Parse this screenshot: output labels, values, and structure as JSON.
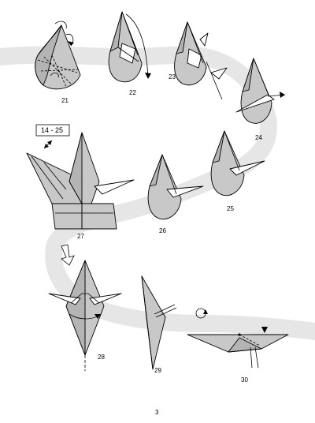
{
  "steps": [
    {
      "number": "21"
    },
    {
      "number": "22"
    },
    {
      "number": "23"
    },
    {
      "number": "24"
    },
    {
      "number": "25"
    },
    {
      "number": "26"
    },
    {
      "number": "27"
    },
    {
      "number": "28"
    },
    {
      "number": "29"
    },
    {
      "number": "30"
    }
  ],
  "repeat_box": {
    "label": "14 - 25"
  },
  "page_number": "3",
  "colors": {
    "paper": "#c8c8c8",
    "paper_dark": "#b4b4b4",
    "path": "#e6e6e6",
    "line": "#000000"
  }
}
